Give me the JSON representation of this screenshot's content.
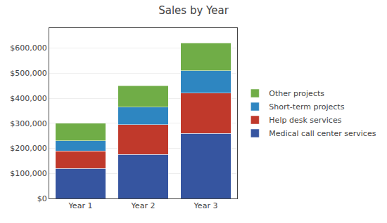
{
  "chart_data": {
    "type": "bar",
    "title": "Sales by Year",
    "categories": [
      "Year 1",
      "Year 2",
      "Year 3"
    ],
    "series": [
      {
        "name": "Medical call center services",
        "color": "#3655A0",
        "values": [
          120000,
          175000,
          260000
        ]
      },
      {
        "name": "Help desk services",
        "color": "#C0392B",
        "values": [
          70000,
          120000,
          160000
        ]
      },
      {
        "name": "Short-term projects",
        "color": "#2E86C1",
        "values": [
          40000,
          70000,
          90000
        ]
      },
      {
        "name": "Other projects",
        "color": "#70AD47",
        "values": [
          70000,
          85000,
          110000
        ]
      }
    ],
    "stacked": true,
    "ylim": [
      0,
      680000
    ],
    "yticks": [
      {
        "value": 0,
        "label": "$0"
      },
      {
        "value": 100000,
        "label": "$100,000"
      },
      {
        "value": 200000,
        "label": "$200,000"
      },
      {
        "value": 300000,
        "label": "$300,000"
      },
      {
        "value": 400000,
        "label": "$400,000"
      },
      {
        "value": 500000,
        "label": "$500,000"
      },
      {
        "value": 600000,
        "label": "$600,000"
      }
    ],
    "grid": true,
    "legend": "right"
  }
}
